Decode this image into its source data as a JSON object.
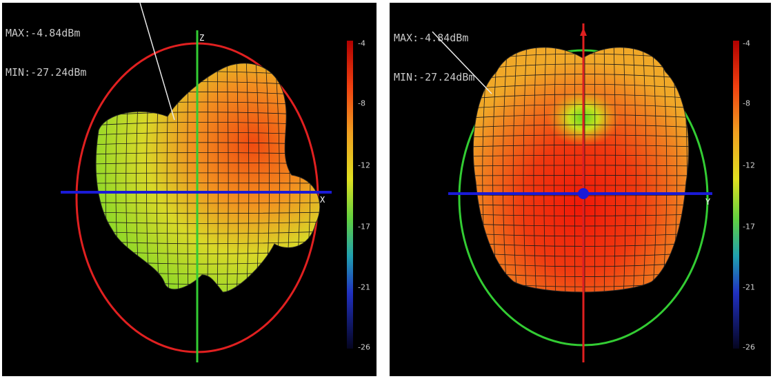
{
  "panels": [
    {
      "id": "left",
      "max_text": "MAX:-4.84dBm",
      "min_text": "MIN:-27.24dBm",
      "axis_labels": {
        "vertical": "Z",
        "horizontal": "X"
      },
      "ellipse_color": "#e02020",
      "vertical_axis_color": "#33cc33",
      "horizontal_axis_color": "#1a1ad6",
      "colorbar_ticks": [
        "-4",
        "-8",
        "-12",
        "-17",
        "-21",
        "-26"
      ]
    },
    {
      "id": "right",
      "max_text": "MAX:-4.84dBm",
      "min_text": "MIN:-27.24dBm",
      "axis_labels": {
        "vertical": "",
        "horizontal": "Y"
      },
      "ellipse_color": "#33cc33",
      "vertical_axis_color": "#e02020",
      "horizontal_axis_color": "#1a1ad6",
      "colorbar_ticks": [
        "-4",
        "-8",
        "-12",
        "-17",
        "-21",
        "-26"
      ]
    }
  ],
  "colorbar_colors": [
    "#d01010",
    "#f05010",
    "#f0a020",
    "#e0e020",
    "#80e020",
    "#20c060",
    "#20a0c0",
    "#2030c0",
    "#101050"
  ]
}
